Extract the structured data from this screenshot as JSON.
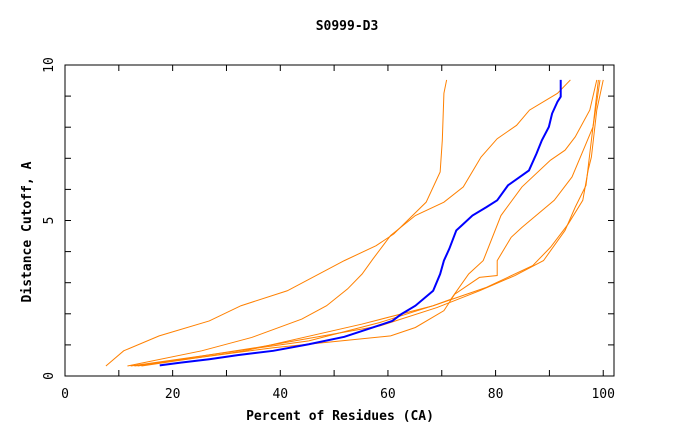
{
  "chart_data": {
    "type": "line",
    "title": "S0999-D3",
    "xlabel": "Percent of Residues (CA)",
    "ylabel": "Distance Cutoff, A",
    "xlim": [
      0,
      102
    ],
    "ylim": [
      0,
      10
    ],
    "x_ticks": [
      0,
      20,
      40,
      60,
      80,
      100
    ],
    "y_ticks": [
      0,
      5,
      10
    ],
    "grid": false,
    "colors": {
      "highlight": "#0000ff",
      "others": "#ff8000"
    },
    "series": [
      {
        "highlight": false,
        "points": [
          [
            7.6,
            0.32
          ],
          [
            10.9,
            0.81
          ],
          [
            17.5,
            1.29
          ],
          [
            26.8,
            1.77
          ],
          [
            32.7,
            2.26
          ],
          [
            41.3,
            2.74
          ],
          [
            51.9,
            3.71
          ],
          [
            57.8,
            4.19
          ],
          [
            61.1,
            4.57
          ],
          [
            67.1,
            5.59
          ],
          [
            69.7,
            6.56
          ],
          [
            70.1,
            7.58
          ],
          [
            70.4,
            9.09
          ],
          [
            70.9,
            9.52
          ]
        ]
      },
      {
        "highlight": false,
        "points": [
          [
            11.6,
            0.32
          ],
          [
            25.4,
            0.81
          ],
          [
            34.7,
            1.24
          ],
          [
            44.0,
            1.83
          ],
          [
            48.6,
            2.26
          ],
          [
            52.5,
            2.8
          ],
          [
            55.2,
            3.28
          ],
          [
            57.2,
            3.76
          ],
          [
            60.5,
            4.52
          ],
          [
            65.1,
            5.16
          ],
          [
            70.4,
            5.59
          ],
          [
            74.0,
            6.08
          ],
          [
            77.3,
            7.04
          ],
          [
            80.3,
            7.63
          ],
          [
            83.9,
            8.06
          ],
          [
            86.3,
            8.55
          ],
          [
            91.5,
            9.09
          ],
          [
            93.9,
            9.52
          ]
        ]
      },
      {
        "highlight": false,
        "points": [
          [
            12.2,
            0.32
          ],
          [
            32.1,
            0.81
          ],
          [
            45.3,
            1.13
          ],
          [
            58.5,
            1.72
          ],
          [
            68.4,
            2.26
          ],
          [
            71.7,
            2.47
          ],
          [
            75.0,
            3.28
          ],
          [
            77.7,
            3.71
          ],
          [
            81.0,
            5.16
          ],
          [
            84.9,
            6.08
          ],
          [
            90.2,
            6.94
          ],
          [
            92.9,
            7.26
          ],
          [
            94.8,
            7.69
          ],
          [
            97.5,
            8.55
          ],
          [
            98.8,
            9.52
          ]
        ]
      },
      {
        "highlight": false,
        "points": [
          [
            12.9,
            0.32
          ],
          [
            38.7,
            0.91
          ],
          [
            60.5,
            1.29
          ],
          [
            65.1,
            1.56
          ],
          [
            70.4,
            2.1
          ],
          [
            72.4,
            2.63
          ],
          [
            77.0,
            3.17
          ],
          [
            80.3,
            3.23
          ],
          [
            80.3,
            3.71
          ],
          [
            82.9,
            4.46
          ],
          [
            84.9,
            4.78
          ],
          [
            90.9,
            5.65
          ],
          [
            94.2,
            6.4
          ],
          [
            96.8,
            7.47
          ],
          [
            98.1,
            8.01
          ],
          [
            99.1,
            9.52
          ]
        ]
      },
      {
        "highlight": false,
        "points": [
          [
            13.5,
            0.32
          ],
          [
            35.4,
            0.91
          ],
          [
            58.5,
            1.61
          ],
          [
            69.1,
            2.2
          ],
          [
            77.0,
            2.74
          ],
          [
            83.6,
            3.23
          ],
          [
            88.9,
            3.71
          ],
          [
            92.9,
            4.68
          ],
          [
            94.8,
            5.43
          ],
          [
            96.8,
            6.13
          ],
          [
            97.5,
            7.15
          ],
          [
            98.1,
            8.01
          ],
          [
            99.4,
            9.52
          ]
        ]
      },
      {
        "highlight": false,
        "points": [
          [
            14.2,
            0.32
          ],
          [
            33.4,
            0.81
          ],
          [
            55.2,
            1.67
          ],
          [
            68.4,
            2.26
          ],
          [
            78.3,
            2.85
          ],
          [
            86.9,
            3.55
          ],
          [
            90.2,
            4.14
          ],
          [
            93.5,
            4.89
          ],
          [
            96.2,
            5.65
          ],
          [
            97.2,
            6.62
          ],
          [
            97.8,
            7.04
          ],
          [
            98.8,
            8.55
          ],
          [
            100.0,
            9.52
          ]
        ]
      },
      {
        "highlight": true,
        "points": [
          [
            17.6,
            0.34
          ],
          [
            21.5,
            0.43
          ],
          [
            26.8,
            0.54
          ],
          [
            32.1,
            0.67
          ],
          [
            38.7,
            0.81
          ],
          [
            45.3,
            1.02
          ],
          [
            51.9,
            1.26
          ],
          [
            57.2,
            1.56
          ],
          [
            60.8,
            1.77
          ],
          [
            62.5,
            1.99
          ],
          [
            65.1,
            2.26
          ],
          [
            68.4,
            2.74
          ],
          [
            69.7,
            3.28
          ],
          [
            70.4,
            3.71
          ],
          [
            71.4,
            4.09
          ],
          [
            72.7,
            4.68
          ],
          [
            73.7,
            4.84
          ],
          [
            75.7,
            5.16
          ],
          [
            78.3,
            5.43
          ],
          [
            80.3,
            5.65
          ],
          [
            82.3,
            6.13
          ],
          [
            84.9,
            6.45
          ],
          [
            86.2,
            6.61
          ],
          [
            87.6,
            7.15
          ],
          [
            88.6,
            7.58
          ],
          [
            89.9,
            8.01
          ],
          [
            90.5,
            8.44
          ],
          [
            91.5,
            8.82
          ],
          [
            92.1,
            8.98
          ],
          [
            92.1,
            9.52
          ]
        ]
      }
    ]
  }
}
